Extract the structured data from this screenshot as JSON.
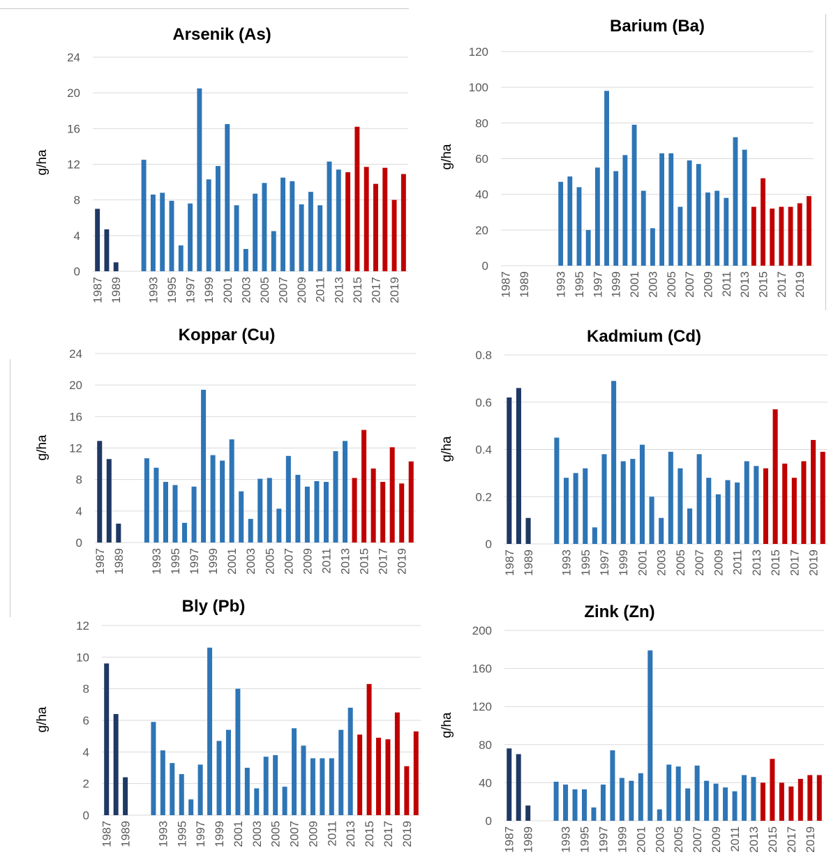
{
  "colors": {
    "early": "#1f3864",
    "middle": "#2e75b6",
    "recent": "#c00000",
    "grid": "#d9d9d9",
    "tick_text": "#595959"
  },
  "chart_data": [
    {
      "id": "as",
      "type": "bar",
      "title": "Arsenik (As)",
      "ylabel": "g/ha",
      "xlabel": "",
      "ylim": [
        0,
        24
      ],
      "yticks": [
        0,
        4,
        8,
        12,
        16,
        20,
        24
      ],
      "ytick_labels": [
        "0",
        "4",
        "8",
        "12",
        "16",
        "20",
        "24"
      ],
      "grid": true,
      "x": [
        1987,
        1988,
        1989,
        1990,
        1991,
        1992,
        1993,
        1994,
        1995,
        1996,
        1997,
        1998,
        1999,
        2000,
        2001,
        2002,
        2003,
        2004,
        2005,
        2006,
        2007,
        2008,
        2009,
        2010,
        2011,
        2012,
        2013,
        2014,
        2015,
        2016,
        2017,
        2018,
        2019,
        2020
      ],
      "xtick_labels": [
        "1987",
        "1989",
        "1993",
        "1995",
        "1997",
        "1999",
        "2001",
        "2003",
        "2005",
        "2007",
        "2009",
        "2011",
        "2013",
        "2015",
        "2017",
        "2019"
      ],
      "series": [
        {
          "color_key": "early",
          "x": [
            1987,
            1988,
            1989
          ],
          "values": [
            7.0,
            4.7,
            1.0
          ]
        },
        {
          "color_key": "middle",
          "x": [
            1992,
            1993,
            1994,
            1995,
            1996,
            1997,
            1998,
            1999,
            2000,
            2001,
            2002,
            2003,
            2004,
            2005,
            2006,
            2007,
            2008,
            2009,
            2010,
            2011,
            2012,
            2013
          ],
          "values": [
            12.5,
            8.6,
            8.8,
            7.9,
            2.9,
            7.6,
            20.5,
            10.3,
            11.8,
            16.5,
            7.4,
            2.5,
            8.7,
            9.9,
            4.5,
            10.5,
            10.1,
            7.5,
            8.9,
            7.4,
            12.3,
            11.4
          ]
        },
        {
          "color_key": "recent",
          "x": [
            2014,
            2015,
            2016,
            2017,
            2018,
            2019,
            2020
          ],
          "values": [
            11.1,
            16.2,
            11.7,
            9.8,
            11.6,
            8.0,
            10.9
          ]
        }
      ]
    },
    {
      "id": "ba",
      "type": "bar",
      "title": "Barium (Ba)",
      "ylabel": "g/ha",
      "xlabel": "",
      "ylim": [
        0,
        120
      ],
      "yticks": [
        0,
        20,
        40,
        60,
        80,
        100,
        120
      ],
      "ytick_labels": [
        "0",
        "20",
        "40",
        "60",
        "80",
        "100",
        "120"
      ],
      "grid": true,
      "x": [
        1987,
        1988,
        1989,
        1990,
        1991,
        1992,
        1993,
        1994,
        1995,
        1996,
        1997,
        1998,
        1999,
        2000,
        2001,
        2002,
        2003,
        2004,
        2005,
        2006,
        2007,
        2008,
        2009,
        2010,
        2011,
        2012,
        2013,
        2014,
        2015,
        2016,
        2017,
        2018,
        2019,
        2020
      ],
      "xtick_labels": [
        "1987",
        "1989",
        "1993",
        "1995",
        "1997",
        "1999",
        "2001",
        "2003",
        "2005",
        "2007",
        "2009",
        "2011",
        "2013",
        "2015",
        "2017",
        "2019"
      ],
      "series": [
        {
          "color_key": "middle",
          "x": [
            1993,
            1994,
            1995,
            1996,
            1997,
            1998,
            1999,
            2000,
            2001,
            2002,
            2003,
            2004,
            2005,
            2006,
            2007,
            2008,
            2009,
            2010,
            2011,
            2012,
            2013
          ],
          "values": [
            47,
            50,
            44,
            20,
            55,
            98,
            53,
            62,
            79,
            42,
            21,
            63,
            63,
            33,
            59,
            57,
            41,
            42,
            38,
            72,
            65
          ]
        },
        {
          "color_key": "recent",
          "x": [
            2014,
            2015,
            2016,
            2017,
            2018,
            2019,
            2020
          ],
          "values": [
            33,
            49,
            32,
            33,
            33,
            35,
            39
          ]
        }
      ]
    },
    {
      "id": "cu",
      "type": "bar",
      "title": "Koppar (Cu)",
      "ylabel": "g/ha",
      "xlabel": "",
      "ylim": [
        0,
        24
      ],
      "yticks": [
        0,
        4,
        8,
        12,
        16,
        20,
        24
      ],
      "ytick_labels": [
        "0",
        "4",
        "8",
        "12",
        "16",
        "20",
        "24"
      ],
      "grid": true,
      "x": [
        1987,
        1988,
        1989,
        1990,
        1991,
        1992,
        1993,
        1994,
        1995,
        1996,
        1997,
        1998,
        1999,
        2000,
        2001,
        2002,
        2003,
        2004,
        2005,
        2006,
        2007,
        2008,
        2009,
        2010,
        2011,
        2012,
        2013,
        2014,
        2015,
        2016,
        2017,
        2018,
        2019,
        2020
      ],
      "xtick_labels": [
        "1987",
        "1989",
        "1993",
        "1995",
        "1997",
        "1999",
        "2001",
        "2003",
        "2005",
        "2007",
        "2009",
        "2011",
        "2013",
        "2015",
        "2017",
        "2019"
      ],
      "series": [
        {
          "color_key": "early",
          "x": [
            1987,
            1988,
            1989
          ],
          "values": [
            12.9,
            10.6,
            2.4
          ]
        },
        {
          "color_key": "middle",
          "x": [
            1992,
            1993,
            1994,
            1995,
            1996,
            1997,
            1998,
            1999,
            2000,
            2001,
            2002,
            2003,
            2004,
            2005,
            2006,
            2007,
            2008,
            2009,
            2010,
            2011,
            2012,
            2013
          ],
          "values": [
            10.7,
            9.5,
            7.7,
            7.3,
            2.5,
            7.1,
            19.4,
            11.1,
            10.4,
            13.1,
            6.5,
            3.0,
            8.1,
            8.2,
            4.3,
            11.0,
            8.6,
            7.1,
            7.8,
            7.7,
            11.6,
            12.9
          ]
        },
        {
          "color_key": "recent",
          "x": [
            2014,
            2015,
            2016,
            2017,
            2018,
            2019,
            2020
          ],
          "values": [
            8.2,
            14.3,
            9.4,
            7.7,
            12.1,
            7.5,
            10.3
          ]
        }
      ]
    },
    {
      "id": "cd",
      "type": "bar",
      "title": "Kadmium (Cd)",
      "ylabel": "g/ha",
      "xlabel": "",
      "ylim": [
        0,
        0.8
      ],
      "yticks": [
        0,
        0.2,
        0.4,
        0.6,
        0.8
      ],
      "ytick_labels": [
        "0",
        "0.2",
        "0.4",
        "0.6",
        "0.8"
      ],
      "grid": true,
      "x": [
        1987,
        1988,
        1989,
        1990,
        1991,
        1992,
        1993,
        1994,
        1995,
        1996,
        1997,
        1998,
        1999,
        2000,
        2001,
        2002,
        2003,
        2004,
        2005,
        2006,
        2007,
        2008,
        2009,
        2010,
        2011,
        2012,
        2013,
        2014,
        2015,
        2016,
        2017,
        2018,
        2019,
        2020
      ],
      "xtick_labels": [
        "1987",
        "1989",
        "1993",
        "1995",
        "1997",
        "1999",
        "2001",
        "2003",
        "2005",
        "2007",
        "2009",
        "2011",
        "2013",
        "2015",
        "2017",
        "2019"
      ],
      "series": [
        {
          "color_key": "early",
          "x": [
            1987,
            1988,
            1989
          ],
          "values": [
            0.62,
            0.66,
            0.11
          ]
        },
        {
          "color_key": "middle",
          "x": [
            1992,
            1993,
            1994,
            1995,
            1996,
            1997,
            1998,
            1999,
            2000,
            2001,
            2002,
            2003,
            2004,
            2005,
            2006,
            2007,
            2008,
            2009,
            2010,
            2011,
            2012,
            2013
          ],
          "values": [
            0.45,
            0.28,
            0.3,
            0.32,
            0.07,
            0.38,
            0.69,
            0.35,
            0.36,
            0.42,
            0.2,
            0.11,
            0.39,
            0.32,
            0.15,
            0.38,
            0.28,
            0.21,
            0.27,
            0.26,
            0.35,
            0.33
          ]
        },
        {
          "color_key": "recent",
          "x": [
            2014,
            2015,
            2016,
            2017,
            2018,
            2019,
            2020
          ],
          "values": [
            0.32,
            0.57,
            0.34,
            0.28,
            0.35,
            0.44,
            0.39
          ]
        }
      ]
    },
    {
      "id": "pb",
      "type": "bar",
      "title": "Bly (Pb)",
      "ylabel": "g/ha",
      "xlabel": "",
      "ylim": [
        0,
        12
      ],
      "yticks": [
        0,
        2,
        4,
        6,
        8,
        10,
        12
      ],
      "ytick_labels": [
        "0",
        "2",
        "4",
        "6",
        "8",
        "10",
        "12"
      ],
      "grid": true,
      "x": [
        1987,
        1988,
        1989,
        1990,
        1991,
        1992,
        1993,
        1994,
        1995,
        1996,
        1997,
        1998,
        1999,
        2000,
        2001,
        2002,
        2003,
        2004,
        2005,
        2006,
        2007,
        2008,
        2009,
        2010,
        2011,
        2012,
        2013,
        2014,
        2015,
        2016,
        2017,
        2018,
        2019,
        2020
      ],
      "xtick_labels": [
        "1987",
        "1989",
        "1993",
        "1995",
        "1997",
        "1999",
        "2001",
        "2003",
        "2005",
        "2007",
        "2009",
        "2011",
        "2013",
        "2015",
        "2017",
        "2019"
      ],
      "series": [
        {
          "color_key": "early",
          "x": [
            1987,
            1988,
            1989
          ],
          "values": [
            9.6,
            6.4,
            2.4
          ]
        },
        {
          "color_key": "middle",
          "x": [
            1992,
            1993,
            1994,
            1995,
            1996,
            1997,
            1998,
            1999,
            2000,
            2001,
            2002,
            2003,
            2004,
            2005,
            2006,
            2007,
            2008,
            2009,
            2010,
            2011,
            2012,
            2013
          ],
          "values": [
            5.9,
            4.1,
            3.3,
            2.6,
            1.0,
            3.2,
            10.6,
            4.7,
            5.4,
            8.0,
            3.0,
            1.7,
            3.7,
            3.8,
            1.8,
            5.5,
            4.4,
            3.6,
            3.6,
            3.6,
            5.4,
            6.8
          ]
        },
        {
          "color_key": "recent",
          "x": [
            2014,
            2015,
            2016,
            2017,
            2018,
            2019,
            2020
          ],
          "values": [
            5.1,
            8.3,
            4.9,
            4.8,
            6.5,
            3.1,
            5.3
          ]
        }
      ]
    },
    {
      "id": "zn",
      "type": "bar",
      "title": "Zink (Zn)",
      "ylabel": "g/ha",
      "xlabel": "",
      "ylim": [
        0,
        200
      ],
      "yticks": [
        0,
        40,
        80,
        120,
        160,
        200
      ],
      "ytick_labels": [
        "0",
        "40",
        "80",
        "120",
        "160",
        "200"
      ],
      "grid": true,
      "x": [
        1987,
        1988,
        1989,
        1990,
        1991,
        1992,
        1993,
        1994,
        1995,
        1996,
        1997,
        1998,
        1999,
        2000,
        2001,
        2002,
        2003,
        2004,
        2005,
        2006,
        2007,
        2008,
        2009,
        2010,
        2011,
        2012,
        2013,
        2014,
        2015,
        2016,
        2017,
        2018,
        2019,
        2020
      ],
      "xtick_labels": [
        "1987",
        "1989",
        "1993",
        "1995",
        "1997",
        "1999",
        "2001",
        "2003",
        "2005",
        "2007",
        "2009",
        "2011",
        "2013",
        "2015",
        "2017",
        "2019"
      ],
      "series": [
        {
          "color_key": "early",
          "x": [
            1987,
            1988,
            1989
          ],
          "values": [
            76,
            70,
            16
          ]
        },
        {
          "color_key": "middle",
          "x": [
            1992,
            1993,
            1994,
            1995,
            1996,
            1997,
            1998,
            1999,
            2000,
            2001,
            2002,
            2003,
            2004,
            2005,
            2006,
            2007,
            2008,
            2009,
            2010,
            2011,
            2012,
            2013
          ],
          "values": [
            41,
            38,
            33,
            33,
            14,
            38,
            74,
            45,
            42,
            50,
            179,
            12,
            59,
            57,
            34,
            58,
            42,
            39,
            35,
            31,
            48,
            46
          ]
        },
        {
          "color_key": "recent",
          "x": [
            2014,
            2015,
            2016,
            2017,
            2018,
            2019,
            2020
          ],
          "values": [
            40,
            65,
            40,
            36,
            44,
            48,
            48
          ]
        }
      ]
    }
  ]
}
